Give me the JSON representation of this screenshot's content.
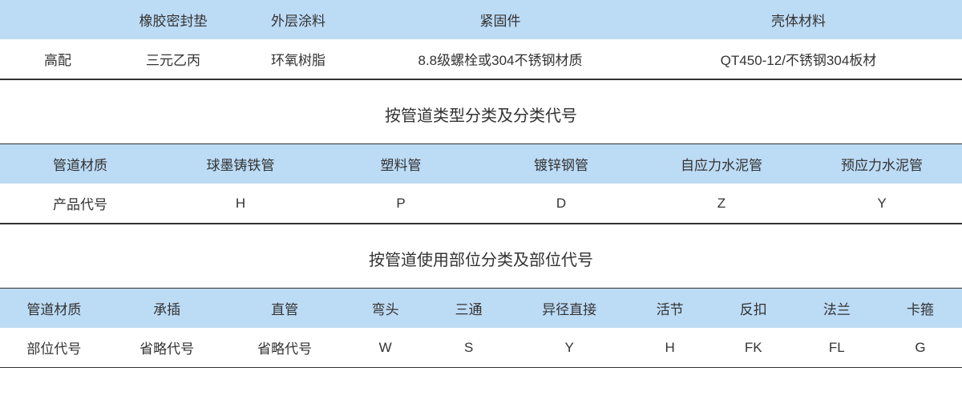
{
  "colors": {
    "header_bg": "#bcdbf5",
    "border": "#333333",
    "text": "#333333",
    "page_bg": "#ffffff"
  },
  "table1": {
    "headers": [
      "",
      "橡胶密封垫",
      "外层涂料",
      "紧固件",
      "壳体材料"
    ],
    "row": [
      "高配",
      "三元乙丙",
      "环氧树脂",
      "8.8级螺栓或304不锈钢材质",
      "QT450-12/不锈钢304板材"
    ]
  },
  "section2": {
    "title": "按管道类型分类及分类代号",
    "headers": [
      "管道材质",
      "球墨铸铁管",
      "塑料管",
      "镀锌钢管",
      "自应力水泥管",
      "预应力水泥管"
    ],
    "row": [
      "产品代号",
      "H",
      "P",
      "D",
      "Z",
      "Y"
    ]
  },
  "section3": {
    "title": "按管道使用部位分类及部位代号",
    "headers": [
      "管道材质",
      "承插",
      "直管",
      "弯头",
      "三通",
      "异径直接",
      "活节",
      "反扣",
      "法兰",
      "卡箍"
    ],
    "row": [
      "部位代号",
      "省略代号",
      "省略代号",
      "W",
      "S",
      "Y",
      "H",
      "FK",
      "FL",
      "G"
    ]
  }
}
